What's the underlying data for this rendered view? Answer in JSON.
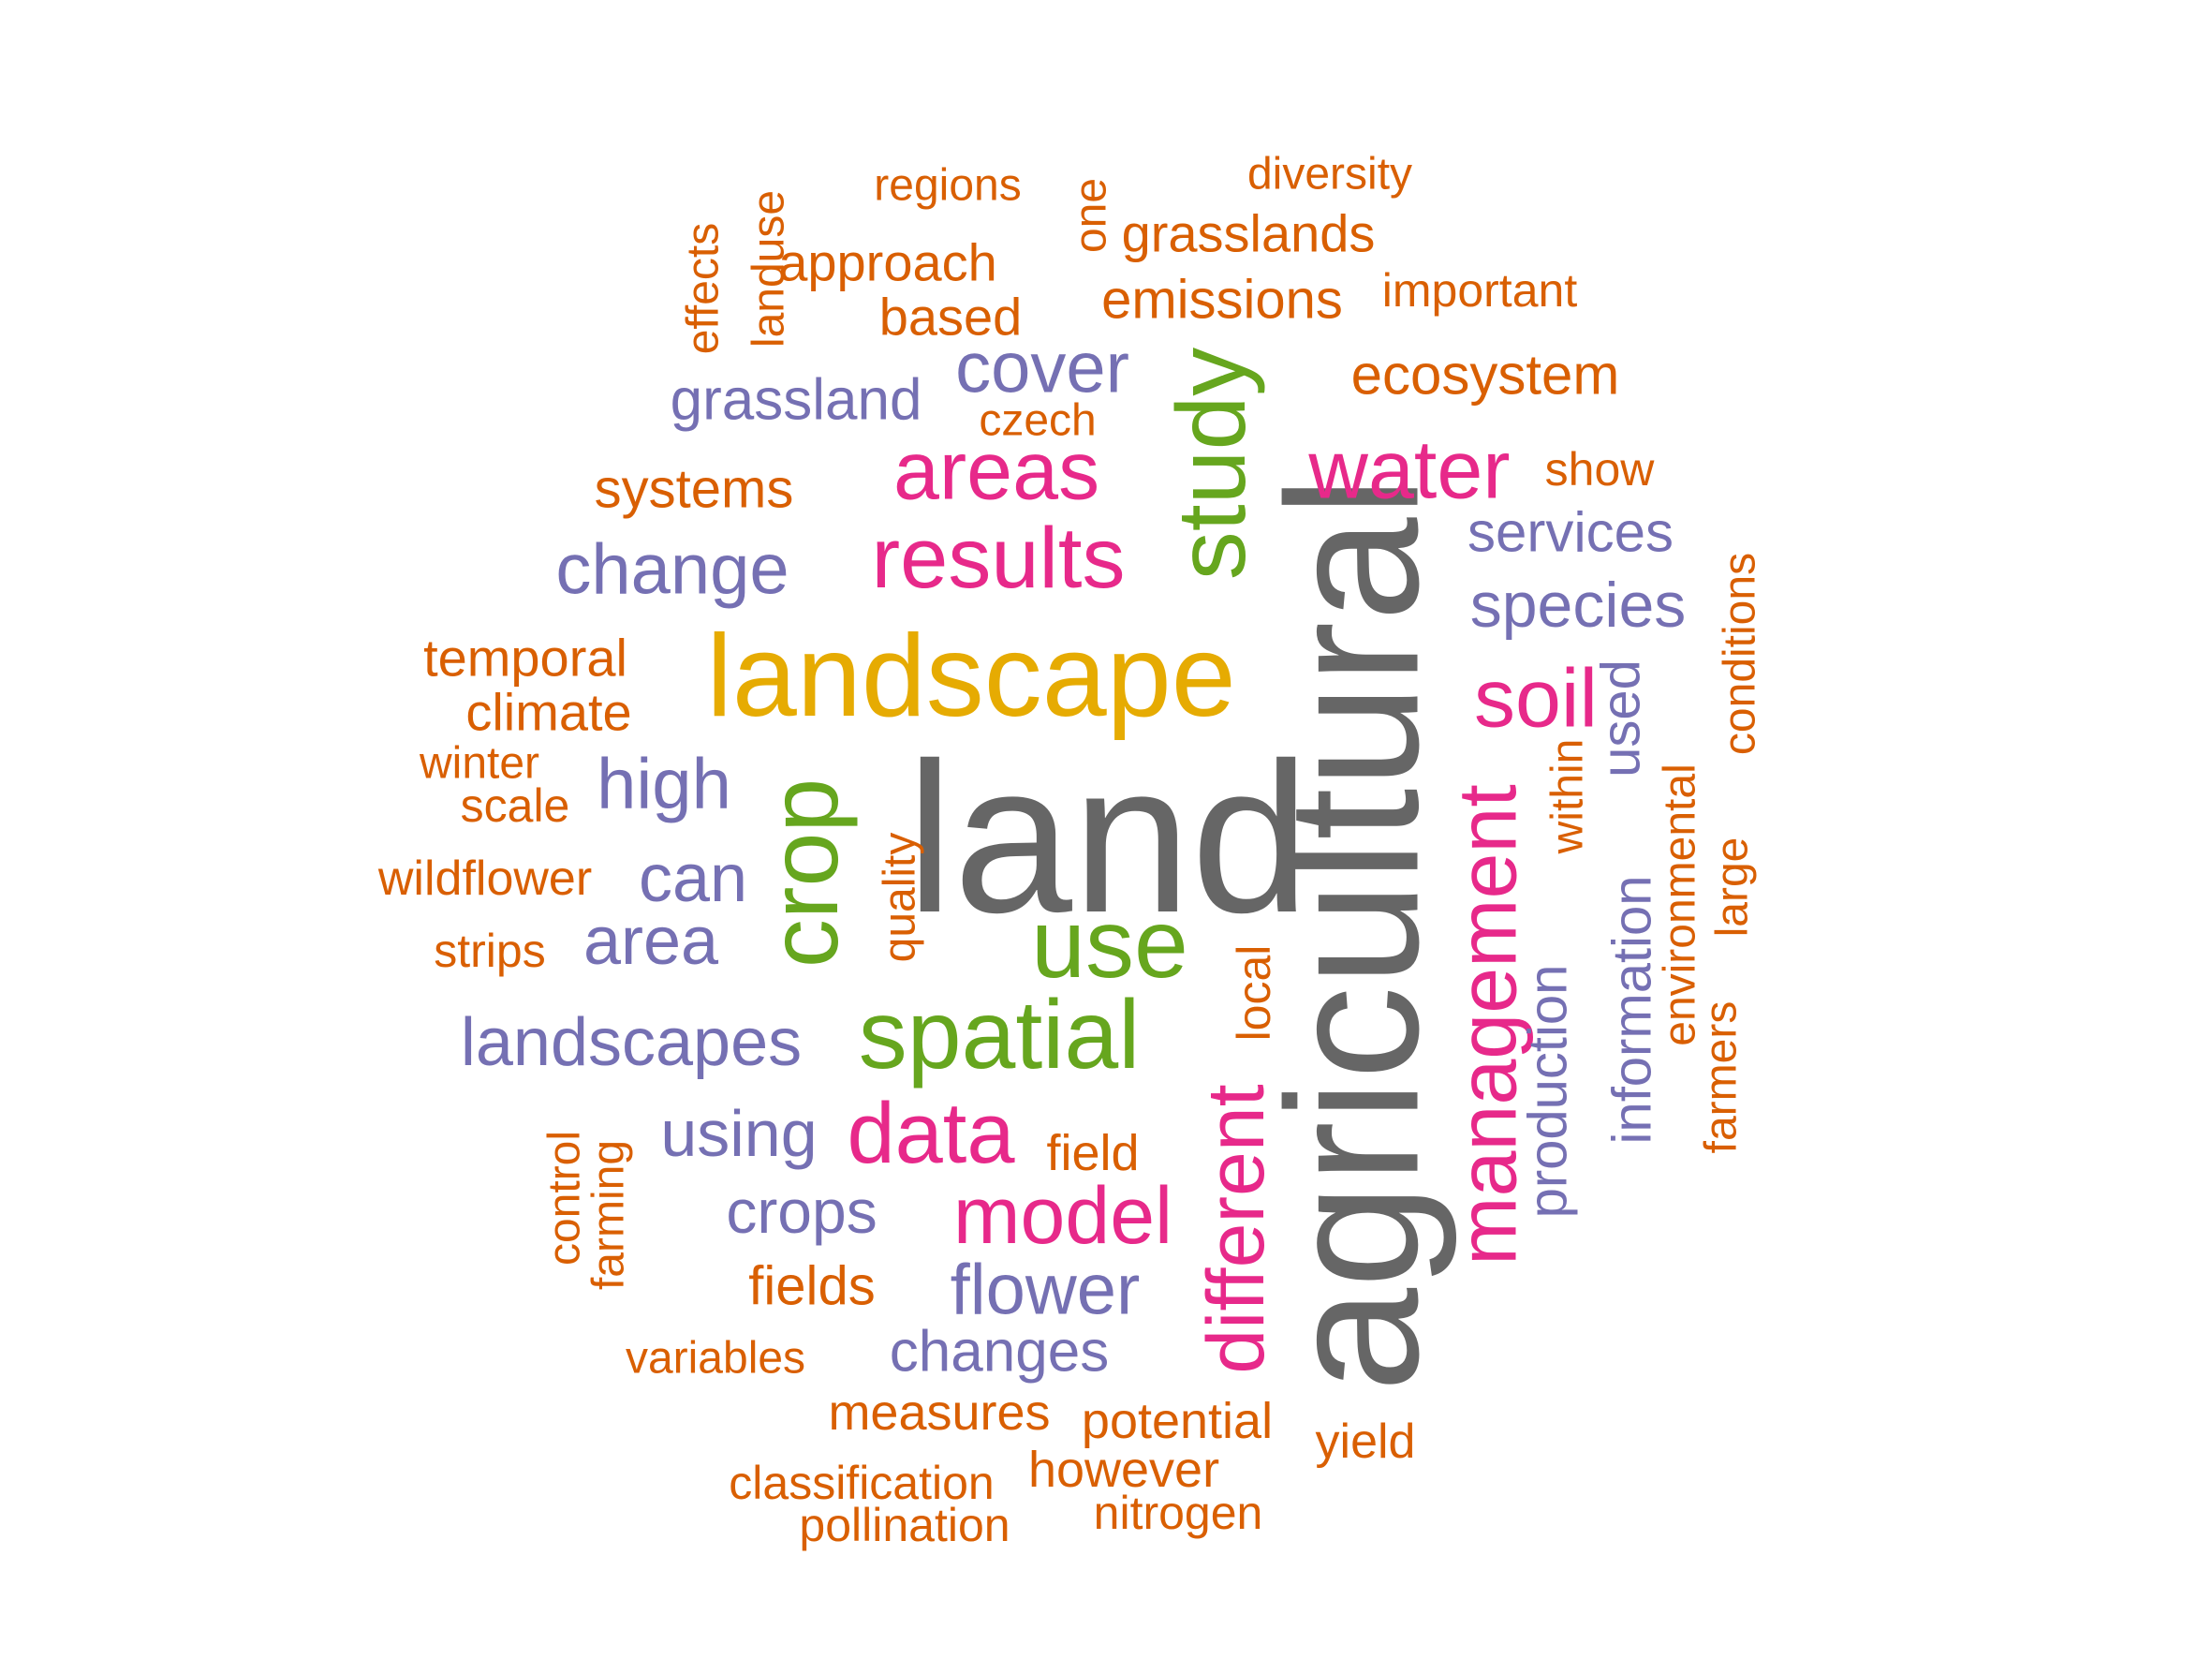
{
  "colors": {
    "orange": "#D95F02",
    "purple": "#7570B3",
    "magenta": "#E7298A",
    "green": "#66A61E",
    "gold": "#E6AB02",
    "gray": "#666666"
  },
  "words": [
    {
      "text": "land",
      "color": "gray"
    },
    {
      "text": "agricultural",
      "color": "gray"
    },
    {
      "text": "landscape",
      "color": "gold"
    },
    {
      "text": "use",
      "color": "green"
    },
    {
      "text": "crop",
      "color": "green"
    },
    {
      "text": "spatial",
      "color": "green"
    },
    {
      "text": "study",
      "color": "green"
    },
    {
      "text": "results",
      "color": "magenta"
    },
    {
      "text": "areas",
      "color": "magenta"
    },
    {
      "text": "water",
      "color": "magenta"
    },
    {
      "text": "soil",
      "color": "magenta"
    },
    {
      "text": "management",
      "color": "magenta"
    },
    {
      "text": "data",
      "color": "magenta"
    },
    {
      "text": "model",
      "color": "magenta"
    },
    {
      "text": "different",
      "color": "magenta"
    },
    {
      "text": "change",
      "color": "purple"
    },
    {
      "text": "cover",
      "color": "purple"
    },
    {
      "text": "grassland",
      "color": "purple"
    },
    {
      "text": "high",
      "color": "purple"
    },
    {
      "text": "can",
      "color": "purple"
    },
    {
      "text": "area",
      "color": "purple"
    },
    {
      "text": "landscapes",
      "color": "purple"
    },
    {
      "text": "using",
      "color": "purple"
    },
    {
      "text": "crops",
      "color": "purple"
    },
    {
      "text": "flower",
      "color": "purple"
    },
    {
      "text": "changes",
      "color": "purple"
    },
    {
      "text": "services",
      "color": "purple"
    },
    {
      "text": "species",
      "color": "purple"
    },
    {
      "text": "used",
      "color": "purple"
    },
    {
      "text": "information",
      "color": "purple"
    },
    {
      "text": "production",
      "color": "purple"
    },
    {
      "text": "regions",
      "color": "orange"
    },
    {
      "text": "diversity",
      "color": "orange"
    },
    {
      "text": "one",
      "color": "orange"
    },
    {
      "text": "grasslands",
      "color": "orange"
    },
    {
      "text": "landuse",
      "color": "orange"
    },
    {
      "text": "effects",
      "color": "orange"
    },
    {
      "text": "approach",
      "color": "orange"
    },
    {
      "text": "based",
      "color": "orange"
    },
    {
      "text": "emissions",
      "color": "orange"
    },
    {
      "text": "important",
      "color": "orange"
    },
    {
      "text": "ecosystem",
      "color": "orange"
    },
    {
      "text": "czech",
      "color": "orange"
    },
    {
      "text": "systems",
      "color": "orange"
    },
    {
      "text": "show",
      "color": "orange"
    },
    {
      "text": "temporal",
      "color": "orange"
    },
    {
      "text": "climate",
      "color": "orange"
    },
    {
      "text": "winter",
      "color": "orange"
    },
    {
      "text": "scale",
      "color": "orange"
    },
    {
      "text": "wildflower",
      "color": "orange"
    },
    {
      "text": "strips",
      "color": "orange"
    },
    {
      "text": "quality",
      "color": "orange"
    },
    {
      "text": "local",
      "color": "orange"
    },
    {
      "text": "conditions",
      "color": "orange"
    },
    {
      "text": "within",
      "color": "orange"
    },
    {
      "text": "environmental",
      "color": "orange"
    },
    {
      "text": "large",
      "color": "orange"
    },
    {
      "text": "farmers",
      "color": "orange"
    },
    {
      "text": "field",
      "color": "orange"
    },
    {
      "text": "control",
      "color": "orange"
    },
    {
      "text": "farming",
      "color": "orange"
    },
    {
      "text": "fields",
      "color": "orange"
    },
    {
      "text": "variables",
      "color": "orange"
    },
    {
      "text": "measures",
      "color": "orange"
    },
    {
      "text": "potential",
      "color": "orange"
    },
    {
      "text": "yield",
      "color": "orange"
    },
    {
      "text": "however",
      "color": "orange"
    },
    {
      "text": "classification",
      "color": "orange"
    },
    {
      "text": "nitrogen",
      "color": "orange"
    },
    {
      "text": "pollination",
      "color": "orange"
    }
  ]
}
